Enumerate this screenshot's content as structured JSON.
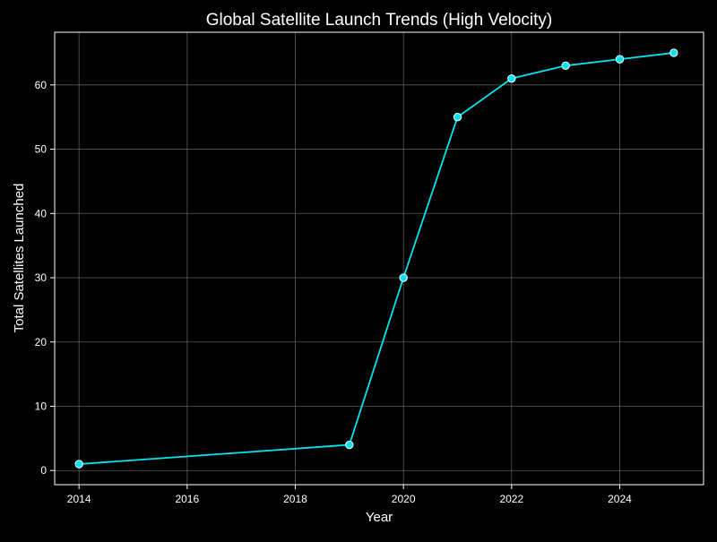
{
  "chart_data": {
    "type": "line",
    "title": "Global Satellite Launch Trends (High Velocity)",
    "xlabel": "Year",
    "ylabel": "Total Satellites Launched",
    "xlim": [
      2013.55,
      2025.55
    ],
    "ylim": [
      -2.2,
      68.2
    ],
    "x_ticks": [
      2014,
      2016,
      2018,
      2020,
      2022,
      2024
    ],
    "y_ticks": [
      0,
      10,
      20,
      30,
      40,
      50,
      60
    ],
    "grid": true,
    "series": [
      {
        "x": [
          2014,
          2019,
          2020,
          2021,
          2022,
          2023,
          2024,
          2025
        ],
        "y": [
          1,
          4,
          30,
          55,
          61,
          63,
          64,
          65
        ],
        "color": "#00e5ee",
        "marker": "circle",
        "marker_edge_color": "#ffffff"
      }
    ],
    "colors": {
      "background": "#000000",
      "axes_text": "#ffffff",
      "grid": "#808080",
      "line": "#00e5ee"
    }
  }
}
